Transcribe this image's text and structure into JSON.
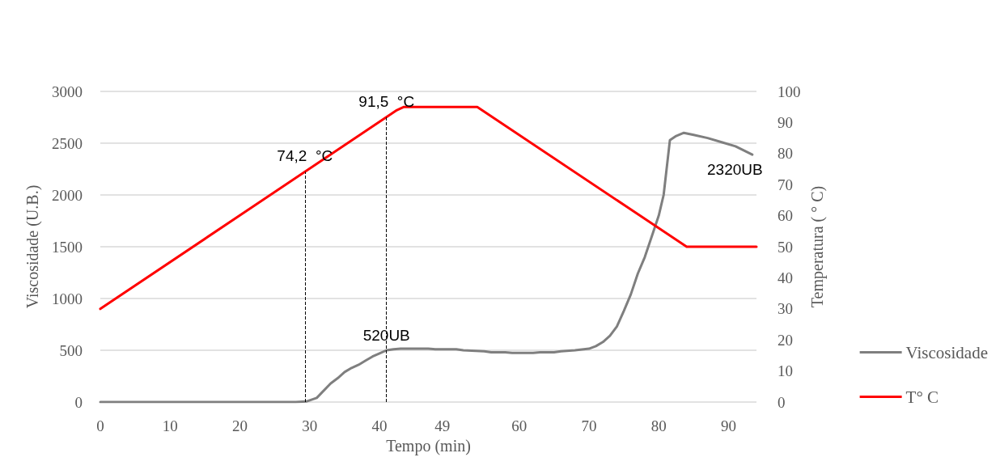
{
  "chart_data": {
    "type": "line",
    "xlabel": "Tempo (min)",
    "ylabel": "Viscosidade (U.B.)",
    "y2label": "Temperatura ( ° C)",
    "series": [
      {
        "name": "Viscosidade",
        "color": "#7f7f7f",
        "x": [
          0,
          28,
          29.5,
          31,
          33,
          34,
          35,
          36,
          37,
          38,
          39,
          40,
          41,
          42,
          43,
          47,
          48,
          51,
          52,
          55,
          56,
          58,
          59,
          62,
          63,
          65,
          66,
          68,
          70,
          71,
          72,
          73,
          74,
          75,
          76,
          77,
          78,
          79,
          80,
          80.7,
          81.6,
          82.5,
          83.6,
          85,
          87,
          89,
          91,
          93.4
        ],
        "values": [
          0,
          0,
          5,
          40,
          180,
          230,
          290,
          330,
          360,
          400,
          440,
          470,
          500,
          510,
          515,
          515,
          510,
          510,
          500,
          490,
          480,
          480,
          475,
          475,
          480,
          480,
          490,
          500,
          515,
          540,
          580,
          640,
          730,
          880,
          1040,
          1240,
          1400,
          1600,
          1800,
          2000,
          2530,
          2570,
          2600,
          2580,
          2550,
          2510,
          2470,
          2390
        ]
      },
      {
        "name": "T° C",
        "color": "#ff0000",
        "axis": "y2",
        "x": [
          0,
          42.5,
          43.5,
          54,
          84,
          94
        ],
        "values": [
          30,
          94,
          95,
          95,
          50,
          50
        ]
      }
    ],
    "xlim": [
      0,
      94
    ],
    "xticks": [
      0,
      10,
      20,
      30,
      40,
      49,
      60,
      70,
      80,
      90
    ],
    "ylim": [
      0,
      3000
    ],
    "yticks": [
      0,
      500,
      1000,
      1500,
      2000,
      2500,
      3000
    ],
    "y2lim": [
      0,
      100
    ],
    "y2ticks": [
      0,
      10,
      20,
      30,
      40,
      50,
      60,
      70,
      80,
      90,
      100
    ],
    "ref_lines": [
      {
        "axis": "x",
        "value": 29.3,
        "label": "74,2  °C",
        "line_style": "dashed",
        "color": "#000000"
      },
      {
        "axis": "x",
        "value": 41,
        "label": "91,5  °C",
        "line_style": "dashed",
        "color": "#000000"
      }
    ],
    "annotations": [
      {
        "text": "520UB",
        "x": 41,
        "y": 520
      },
      "2320UB"
    ],
    "grid": "y",
    "legend": "right",
    "marker": "none",
    "line_style": "solid"
  }
}
